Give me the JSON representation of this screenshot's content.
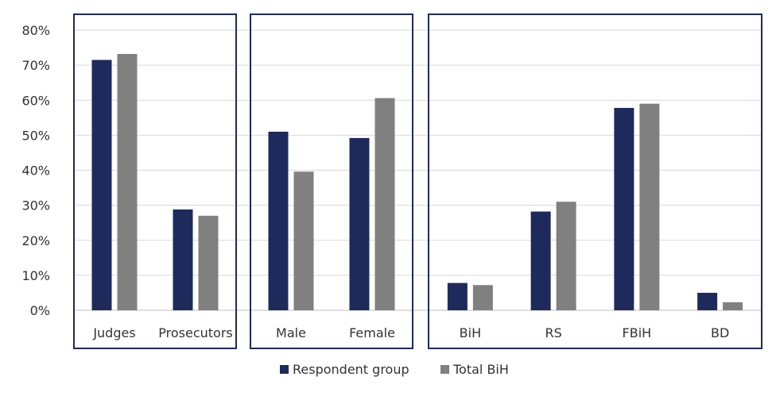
{
  "chart_data": {
    "type": "bar",
    "ylim": [
      0,
      80
    ],
    "y_ticks": [
      "0%",
      "10%",
      "20%",
      "30%",
      "40%",
      "50%",
      "60%",
      "70%",
      "80%"
    ],
    "grid": true,
    "legend_position": "bottom",
    "groups": [
      {
        "categories": [
          "Judges",
          "Prosecutors"
        ]
      },
      {
        "categories": [
          "Male",
          "Female"
        ]
      },
      {
        "categories": [
          "BiH",
          "RS",
          "FBiH",
          "BD"
        ]
      }
    ],
    "categories": [
      "Judges",
      "Prosecutors",
      "Male",
      "Female",
      "BiH",
      "RS",
      "FBiH",
      "BD"
    ],
    "series": [
      {
        "name": "Respondent group",
        "color": "#1f2a5c",
        "values": [
          71.5,
          28.8,
          51.0,
          49.2,
          7.8,
          28.2,
          57.8,
          5.0
        ]
      },
      {
        "name": "Total BiH",
        "color": "#808080",
        "values": [
          73.2,
          27.0,
          39.6,
          60.6,
          7.2,
          31.0,
          59.0,
          2.3
        ]
      }
    ]
  }
}
